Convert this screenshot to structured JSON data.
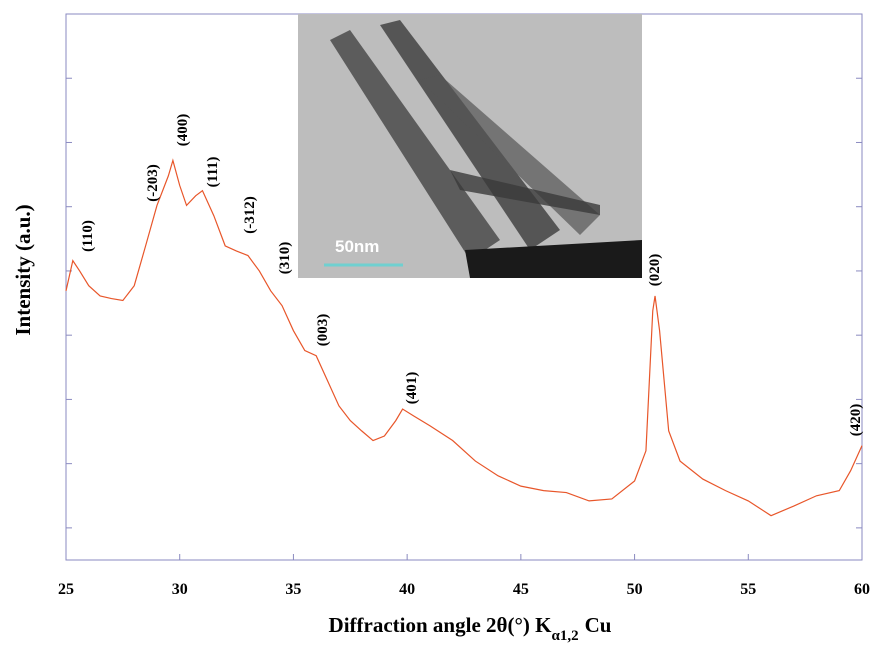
{
  "chart_data": {
    "type": "line",
    "x_label": "Diffraction angle 2θ(°) K",
    "x_label_sub": "α1,2",
    "x_label_suffix": "Cu",
    "y_label": "Intensity (a.u.)",
    "xlim": [
      25,
      60
    ],
    "xticks": [
      25,
      30,
      35,
      40,
      45,
      50,
      55,
      60
    ],
    "ylim": [
      -0.5,
      8
    ],
    "yticks": [
      0,
      1,
      2,
      3,
      4,
      5,
      6,
      7
    ],
    "series": [
      {
        "color": "#e8562a",
        "x": [
          25,
          25.3,
          25.6,
          26,
          26.5,
          27,
          27.5,
          28,
          28.5,
          29,
          29.5,
          29.7,
          30,
          30.3,
          30.7,
          31,
          31.5,
          32,
          32.5,
          33,
          33.5,
          34,
          34.5,
          35,
          35.5,
          36,
          36.5,
          37,
          37.5,
          38,
          38.5,
          39,
          39.5,
          39.8,
          40.3,
          41,
          42,
          43,
          44,
          45,
          46,
          47,
          48,
          49,
          50,
          50.5,
          50.8,
          50.9,
          51.1,
          51.5,
          52,
          53,
          54,
          55,
          56,
          57,
          58,
          59,
          59.5,
          60
        ],
        "values": [
          3.69,
          4.16,
          4.0,
          3.77,
          3.61,
          3.57,
          3.54,
          3.77,
          4.39,
          5.02,
          5.48,
          5.72,
          5.33,
          5.02,
          5.17,
          5.25,
          4.86,
          4.39,
          4.31,
          4.24,
          4.0,
          3.69,
          3.46,
          3.07,
          2.76,
          2.68,
          2.29,
          1.9,
          1.67,
          1.51,
          1.36,
          1.43,
          1.67,
          1.85,
          1.74,
          1.59,
          1.36,
          1.04,
          0.81,
          0.65,
          0.58,
          0.55,
          0.42,
          0.45,
          0.73,
          1.2,
          3.38,
          3.61,
          3.07,
          1.51,
          1.04,
          0.76,
          0.58,
          0.42,
          0.19,
          0.34,
          0.5,
          0.58,
          0.89,
          1.28
        ]
      }
    ],
    "annotations": [
      "(110)",
      "(-203)",
      "(400)",
      "(111)",
      "(-312)",
      "(310)",
      "(003)",
      "(401)",
      "(020)",
      "(420)"
    ],
    "inset_scale_label": "50nm"
  }
}
